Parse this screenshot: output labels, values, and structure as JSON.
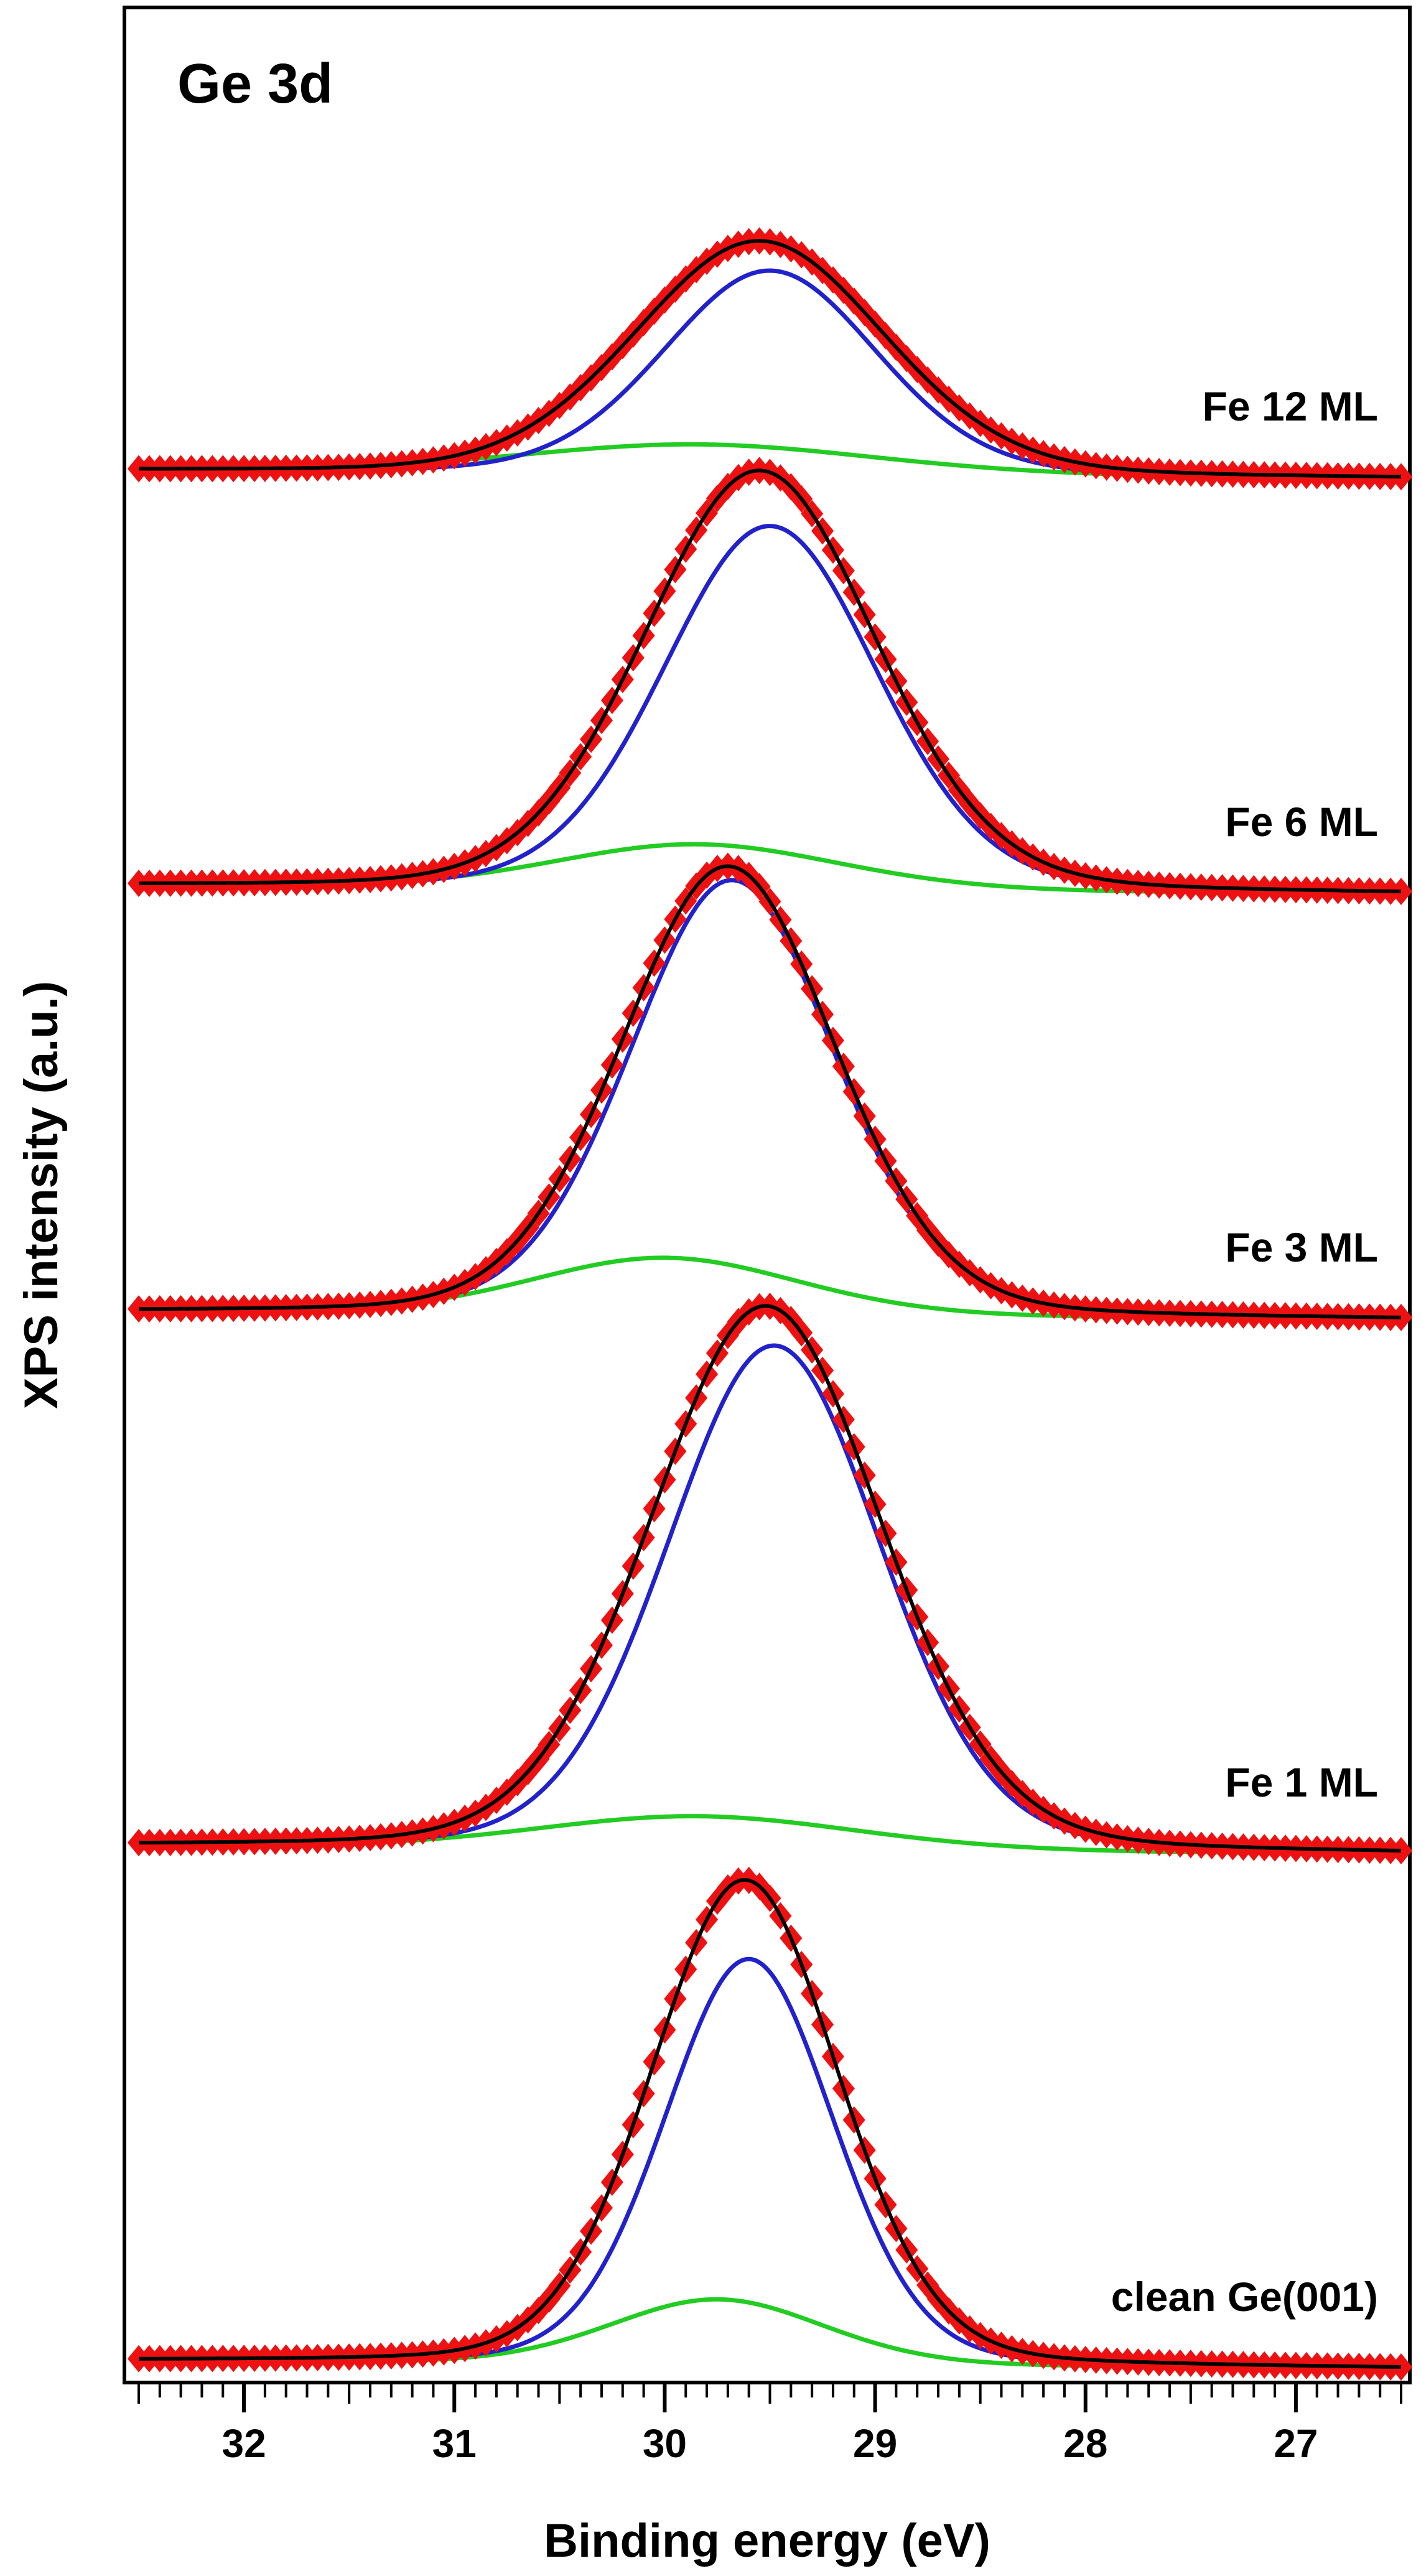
{
  "chart_data": {
    "type": "line",
    "title": "Ge 3d",
    "xlabel": "Binding energy (eV)",
    "ylabel": "XPS intensity (a.u.)",
    "xlim": [
      32.5,
      26.5
    ],
    "x_reversed": true,
    "x_ticks": [
      32,
      31,
      30,
      29,
      28,
      27
    ],
    "x_tick_labels": [
      "32",
      "31",
      "30",
      "29",
      "28",
      "27"
    ],
    "minor_tick_step": 0.1,
    "y_units": "a.u. (offset stacked)",
    "ylim": [
      0,
      11.8
    ],
    "colors": {
      "data_markers": "#ee1111",
      "fit_envelope": "#000000",
      "bulk_component": "#2222cc",
      "interface_component": "#22cc22",
      "axes": "#000000"
    },
    "series_legend": [
      "experimental data (red diamonds)",
      "total fit (black)",
      "bulk component (blue)",
      "surface/interface component (green)"
    ],
    "traces": [
      {
        "label": "clean  Ge(001)",
        "offset": 0.0,
        "baseline_left": 0.03,
        "baseline_right": -0.01,
        "total": {
          "center": 29.62,
          "height": 2.45,
          "fwhm": 1.05
        },
        "bulk": {
          "center": 29.6,
          "height": 2.05,
          "fwhm": 0.95
        },
        "interface": {
          "center": 29.75,
          "height": 0.33,
          "fwhm": 1.2
        }
      },
      {
        "label": "Fe 1 ML",
        "offset": 2.6,
        "baseline_left": 0.03,
        "baseline_right": -0.01,
        "total": {
          "center": 29.52,
          "height": 2.75,
          "fwhm": 1.3
        },
        "bulk": {
          "center": 29.48,
          "height": 2.55,
          "fwhm": 1.2
        },
        "interface": {
          "center": 29.85,
          "height": 0.17,
          "fwhm": 1.8
        }
      },
      {
        "label": "Fe 3 ML",
        "offset": 5.3,
        "baseline_left": 0.03,
        "baseline_right": -0.01,
        "total": {
          "center": 29.7,
          "height": 2.27,
          "fwhm": 1.2
        },
        "bulk": {
          "center": 29.68,
          "height": 2.2,
          "fwhm": 1.15
        },
        "interface": {
          "center": 30.0,
          "height": 0.29,
          "fwhm": 1.5
        }
      },
      {
        "label": "Fe 6 ML",
        "offset": 7.45,
        "baseline_left": 0.03,
        "baseline_right": -0.01,
        "total": {
          "center": 29.55,
          "height": 2.12,
          "fwhm": 1.3
        },
        "bulk": {
          "center": 29.5,
          "height": 1.84,
          "fwhm": 1.2
        },
        "interface": {
          "center": 29.85,
          "height": 0.23,
          "fwhm": 1.6
        }
      },
      {
        "label": "Fe 12 ML",
        "offset": 9.55,
        "baseline_left": 0.03,
        "baseline_right": -0.01,
        "total": {
          "center": 29.55,
          "height": 1.18,
          "fwhm": 1.4
        },
        "bulk": {
          "center": 29.5,
          "height": 1.03,
          "fwhm": 1.2
        },
        "interface": {
          "center": 29.85,
          "height": 0.15,
          "fwhm": 2.0
        }
      }
    ]
  }
}
